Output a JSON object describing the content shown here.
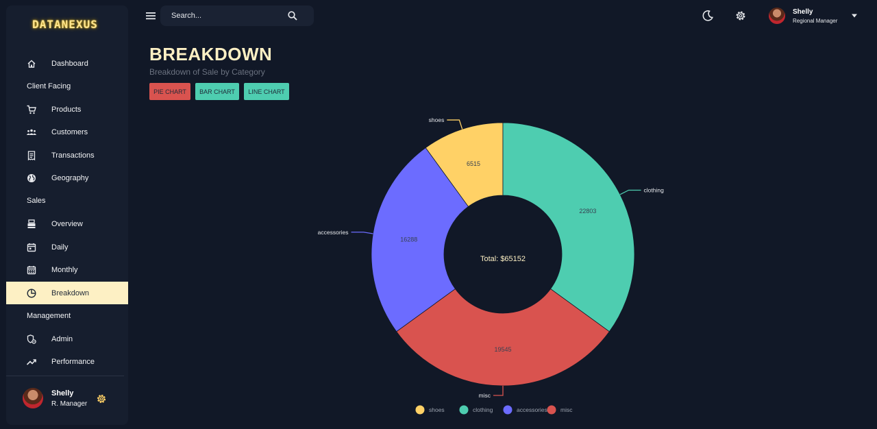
{
  "app": {
    "logo": "DATANEXUS"
  },
  "sidebar": {
    "items": [
      {
        "label": "Dashboard",
        "icon": "home-icon",
        "type": "item"
      },
      {
        "label": "Client Facing",
        "type": "section"
      },
      {
        "label": "Products",
        "icon": "cart-icon",
        "type": "item"
      },
      {
        "label": "Customers",
        "icon": "groups-icon",
        "type": "item"
      },
      {
        "label": "Transactions",
        "icon": "receipt-icon",
        "type": "item"
      },
      {
        "label": "Geography",
        "icon": "globe-icon",
        "type": "item"
      },
      {
        "label": "Sales",
        "type": "section"
      },
      {
        "label": "Overview",
        "icon": "point-of-sale-icon",
        "type": "item"
      },
      {
        "label": "Daily",
        "icon": "calendar-today-icon",
        "type": "item"
      },
      {
        "label": "Monthly",
        "icon": "calendar-month-icon",
        "type": "item"
      },
      {
        "label": "Breakdown",
        "icon": "pie-chart-icon",
        "type": "item",
        "active": true
      },
      {
        "label": "Management",
        "type": "section"
      },
      {
        "label": "Admin",
        "icon": "admin-icon",
        "type": "item"
      },
      {
        "label": "Performance",
        "icon": "trending-up-icon",
        "type": "item"
      }
    ],
    "user": {
      "name": "Shelly",
      "role": "R. Manager"
    }
  },
  "topbar": {
    "search": {
      "placeholder": "Search..."
    },
    "user": {
      "name": "Shelly",
      "role": "Regional Manager"
    }
  },
  "page": {
    "title": "BREAKDOWN",
    "subtitle": "Breakdown of Sale by Category",
    "buttons": {
      "pie": "PIE CHART",
      "bar": "BAR CHART",
      "line": "LINE CHART"
    }
  },
  "colors": {
    "accent": "#fdf0c4",
    "shoes": "#ffd166",
    "clothing": "#4ecdb0",
    "accessories": "#6c6cff",
    "misc": "#d9534f"
  },
  "chart_data": {
    "type": "pie",
    "donut": true,
    "center_label": "Total: $65152",
    "slices": [
      {
        "label": "shoes",
        "value": 6515,
        "color": "#ffd166"
      },
      {
        "label": "clothing",
        "value": 22803,
        "color": "#4ecdb0"
      },
      {
        "label": "misc",
        "value": 19545,
        "color": "#d9534f"
      },
      {
        "label": "accessories",
        "value": 16288,
        "color": "#6c6cff"
      }
    ],
    "legend": [
      "shoes",
      "clothing",
      "accessories",
      "misc"
    ],
    "legend_position": "bottom"
  }
}
